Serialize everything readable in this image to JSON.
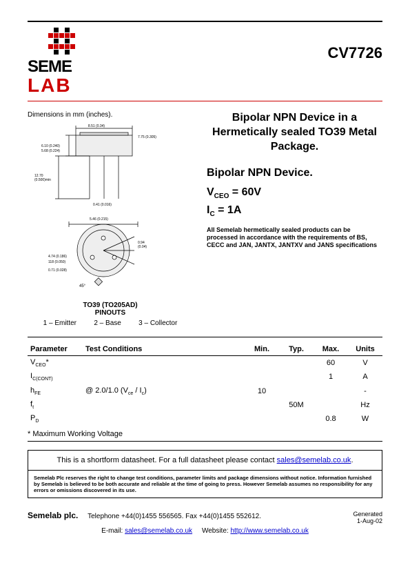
{
  "logo": {
    "line1": "SEME",
    "line2": "LAB"
  },
  "part_number": "CV7726",
  "dims_label": "Dimensions in mm (inches).",
  "package_label_1": "TO39 (TO205AD)",
  "package_label_2": "PINOUTS",
  "pinouts": [
    "1 – Emitter",
    "2 – Base",
    "3 – Collector"
  ],
  "title_main": "Bipolar NPN Device in a Hermetically sealed TO39 Metal Package.",
  "title_sub": "Bipolar NPN Device.",
  "vceo_line": "V",
  "vceo_sub": "CEO",
  "vceo_eq": " =  60V",
  "ic_line": "I",
  "ic_sub": "C",
  "ic_eq": " = 1A",
  "note": "All Semelab hermetically sealed products can be processed in accordance with the requirements of BS, CECC and JAN, JANTX, JANTXV and JANS specifications",
  "table": {
    "headers": [
      "Parameter",
      "Test Conditions",
      "Min.",
      "Typ.",
      "Max.",
      "Units"
    ],
    "rows": [
      {
        "param_html": "V<sub>CEO</sub>*",
        "cond": "",
        "min": "",
        "typ": "",
        "max": "60",
        "units": "V"
      },
      {
        "param_html": "I<sub>C(CONT)</sub>",
        "cond": "",
        "min": "",
        "typ": "",
        "max": "1",
        "units": "A"
      },
      {
        "param_html": "h<sub>FE</sub>",
        "cond": "@ 2.0/1.0 (V<sub>ce</sub> / I<sub>c</sub>)",
        "min": "10",
        "typ": "",
        "max": "",
        "units": "-"
      },
      {
        "param_html": "f<sub>t</sub>",
        "cond": "",
        "min": "",
        "typ": "50M",
        "max": "",
        "units": "Hz"
      },
      {
        "param_html": "P<sub>D</sub>",
        "cond": "",
        "min": "",
        "typ": "",
        "max": "0.8",
        "units": "W"
      }
    ],
    "footnote": "* Maximum Working Voltage"
  },
  "shortform_text": "This is a shortform datasheet. For a full datasheet please contact ",
  "shortform_email": "sales@semelab.co.uk",
  "legal": "Semelab Plc reserves the right to change test conditions, parameter limits and package dimensions without notice. Information furnished by Semelab is believed to be both accurate and reliable at the time of going to press. However Semelab assumes no responsibility for any errors or omissions discovered in its use.",
  "footer": {
    "company": "Semelab plc.",
    "phone": "Telephone +44(0)1455 556565. Fax +44(0)1455 552612.",
    "email_label": "E-mail: ",
    "email": "sales@semelab.co.uk",
    "website_label": "Website: ",
    "website": "http://www.semelab.co.uk",
    "generated_label": "Generated",
    "generated_date": "1-Aug-02"
  },
  "colors": {
    "accent": "#c00000",
    "link": "#0000cc"
  }
}
